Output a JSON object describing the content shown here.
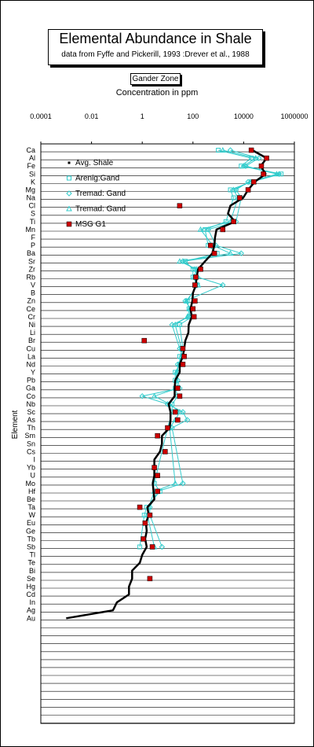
{
  "chart_data": {
    "type": "scatter",
    "title": "Elemental  Abundance in Shale",
    "subtitle": "data from Fyffe and Pickerill, 1993 :Drever et al., 1988",
    "annotation": "Gander Zone",
    "xlabel": "Concentration in ppm",
    "ylabel": "Element",
    "xscale": "log",
    "xlim": [
      0.0001,
      1000000
    ],
    "x_ticks": [
      "0.0001",
      "0.01",
      "1",
      "100",
      "10000",
      "1000000"
    ],
    "grid": "horizontal",
    "legend_position": "upper-left",
    "categories": [
      "Ca",
      "Al",
      "Fe",
      "Si",
      "K",
      "Mg",
      "Na",
      "Cl",
      "S",
      "Ti",
      "Mn",
      "F",
      "P",
      "Ba",
      "Sr",
      "Zr",
      "Rb",
      "V",
      "B",
      "Zn",
      "Ce",
      "Cr",
      "Ni",
      "Li",
      "Br",
      "Cu",
      "La",
      "Nd",
      "Y",
      "Pb",
      "Ga",
      "Co",
      "Nb",
      "Sc",
      "As",
      "Th",
      "Sm",
      "Sn",
      "Cs",
      "I",
      "Yb",
      "U",
      "Mo",
      "Hf",
      "Be",
      "Ta",
      "W",
      "Eu",
      "Ge",
      "Tb",
      "Sb",
      "Tl",
      "Te",
      "Bi",
      "Se",
      "Hg",
      "Cd",
      "In",
      "Ag",
      "Au"
    ],
    "series": [
      {
        "name": "Avg. Shale",
        "style": "line",
        "color": "#000000",
        "points": [
          [
            "Ca",
            22000
          ],
          [
            "Al",
            80000
          ],
          [
            "Fe",
            47000
          ],
          [
            "Si",
            73000
          ],
          [
            "K",
            27000
          ],
          [
            "Mg",
            15000
          ],
          [
            "Na",
            9600
          ],
          [
            "Cl",
            3000
          ],
          [
            "S",
            2400
          ],
          [
            "Ti",
            4600
          ],
          [
            "Mn",
            850
          ],
          [
            "F",
            740
          ],
          [
            "P",
            700
          ],
          [
            "Ba",
            580
          ],
          [
            "Sr",
            300
          ],
          [
            "Zr",
            160
          ],
          [
            "Rb",
            140
          ],
          [
            "V",
            130
          ],
          [
            "B",
            100
          ],
          [
            "Zn",
            95
          ],
          [
            "Ce",
            80
          ],
          [
            "Cr",
            90
          ],
          [
            "Ni",
            68
          ],
          [
            "Li",
            66
          ],
          [
            "Br",
            50
          ],
          [
            "Cu",
            45
          ],
          [
            "La",
            40
          ],
          [
            "Nd",
            30
          ],
          [
            "Y",
            30
          ],
          [
            "Pb",
            20
          ],
          [
            "Ga",
            19
          ],
          [
            "Co",
            19
          ],
          [
            "Nb",
            11
          ],
          [
            "Sc",
            13
          ],
          [
            "As",
            13
          ],
          [
            "Th",
            12
          ],
          [
            "Sm",
            6
          ],
          [
            "Sn",
            6
          ],
          [
            "Cs",
            5
          ],
          [
            "I",
            3
          ],
          [
            "Yb",
            3
          ],
          [
            "U",
            3
          ],
          [
            "Mo",
            2.6
          ],
          [
            "Hf",
            2.8
          ],
          [
            "Be",
            3
          ],
          [
            "Ta",
            1.6
          ],
          [
            "W",
            1.8
          ],
          [
            "Eu",
            1.4
          ],
          [
            "Ge",
            1.5
          ],
          [
            "Tb",
            1.3
          ],
          [
            "Sb",
            1.5
          ],
          [
            "Tl",
            1
          ],
          [
            "Te",
            0.8
          ],
          [
            "Bi",
            0.4
          ],
          [
            "Se",
            0.4
          ],
          [
            "Hg",
            0.3
          ],
          [
            "Cd",
            0.3
          ],
          [
            "In",
            0.1
          ],
          [
            "Ag",
            0.07
          ],
          [
            "Au",
            0.001
          ]
        ]
      },
      {
        "name": "Arenig:Gand",
        "style": "line-square-open",
        "color": "#33CCCC",
        "points": [
          [
            "Ca",
            1000
          ],
          [
            "Al",
            20000
          ],
          [
            "Fe",
            8000
          ],
          [
            "Si",
            300000
          ],
          [
            "K",
            20000
          ],
          [
            "Mg",
            3000
          ],
          [
            "Na",
            4000
          ],
          [
            "Ti",
            2000
          ],
          [
            "Mn",
            300
          ],
          [
            "P",
            400
          ],
          [
            "Ba",
            900
          ],
          [
            "Sr",
            50
          ],
          [
            "Zr",
            100
          ],
          [
            "Rb",
            100
          ],
          [
            "V",
            150
          ],
          [
            "Zn",
            60
          ],
          [
            "Ce",
            70
          ],
          [
            "Cr",
            90
          ],
          [
            "Ni",
            30
          ],
          [
            "Cu",
            40
          ],
          [
            "La",
            30
          ],
          [
            "Nd",
            30
          ],
          [
            "Y",
            20
          ],
          [
            "Pb",
            20
          ],
          [
            "Ga",
            20
          ],
          [
            "Co",
            25
          ],
          [
            "Nb",
            15
          ],
          [
            "Sc",
            15
          ],
          [
            "Th",
            10
          ],
          [
            "Mo",
            3
          ],
          [
            "Hf",
            5
          ],
          [
            "Ta",
            1.5
          ],
          [
            "W",
            1.2
          ],
          [
            "Sb",
            0.8
          ]
        ]
      },
      {
        "name": "Tremad: Gand",
        "style": "line-diamond-open",
        "color": "#33CCCC",
        "points": [
          [
            "Ca",
            3000
          ],
          [
            "Al",
            40000
          ],
          [
            "Fe",
            12000
          ],
          [
            "Si",
            250000
          ],
          [
            "K",
            15000
          ],
          [
            "Mg",
            5000
          ],
          [
            "Na",
            8000
          ],
          [
            "Ti",
            5000
          ],
          [
            "Mn",
            400
          ],
          [
            "P",
            800
          ],
          [
            "Ba",
            8000
          ],
          [
            "Sr",
            40
          ],
          [
            "Zr",
            120
          ],
          [
            "Rb",
            150
          ],
          [
            "V",
            1500
          ],
          [
            "Zn",
            50
          ],
          [
            "Ce",
            80
          ],
          [
            "Cr",
            70
          ],
          [
            "Ni",
            15
          ],
          [
            "Cu",
            30
          ],
          [
            "La",
            40
          ],
          [
            "Nd",
            25
          ],
          [
            "Y",
            25
          ],
          [
            "Pb",
            25
          ],
          [
            "Ga",
            30
          ],
          [
            "Co",
            1
          ],
          [
            "Nb",
            10
          ],
          [
            "Sc",
            40
          ],
          [
            "As",
            60
          ],
          [
            "Th",
            15
          ],
          [
            "Mo",
            40
          ],
          [
            "Hf",
            4
          ],
          [
            "Ta",
            2
          ],
          [
            "W",
            2
          ],
          [
            "Sb",
            6
          ]
        ]
      },
      {
        "name": "Tremad: Gand",
        "style": "line-triangle-open",
        "color": "#33CCCC",
        "points": [
          [
            "Ca",
            1500
          ],
          [
            "Al",
            30000
          ],
          [
            "Fe",
            10000
          ],
          [
            "Si",
            200000
          ],
          [
            "K",
            18000
          ],
          [
            "Mg",
            4000
          ],
          [
            "Na",
            6000
          ],
          [
            "Ti",
            3000
          ],
          [
            "Mn",
            200
          ],
          [
            "P",
            600
          ],
          [
            "Ba",
            3000
          ],
          [
            "Sr",
            30
          ],
          [
            "Zr",
            140
          ],
          [
            "Rb",
            110
          ],
          [
            "V",
            160
          ],
          [
            "Zn",
            55
          ],
          [
            "Ce",
            75
          ],
          [
            "Cr",
            60
          ],
          [
            "Ni",
            20
          ],
          [
            "Cu",
            35
          ],
          [
            "La",
            35
          ],
          [
            "Nd",
            28
          ],
          [
            "Y",
            22
          ],
          [
            "Pb",
            22
          ],
          [
            "Ga",
            25
          ],
          [
            "Co",
            3
          ],
          [
            "Nb",
            12
          ],
          [
            "Sc",
            30
          ],
          [
            "As",
            20
          ],
          [
            "Th",
            12
          ],
          [
            "Mo",
            20
          ],
          [
            "Hf",
            3
          ],
          [
            "Ta",
            1.8
          ],
          [
            "W",
            1.6
          ],
          [
            "Sb",
            3
          ]
        ]
      },
      {
        "name": "MSG G1",
        "style": "marker-square-filled",
        "color": "#CC0000",
        "points": [
          [
            "Ca",
            20000
          ],
          [
            "Al",
            80000
          ],
          [
            "Fe",
            50000
          ],
          [
            "Si",
            60000
          ],
          [
            "K",
            25000
          ],
          [
            "Mg",
            15000
          ],
          [
            "Na",
            7000
          ],
          [
            "Cl",
            30
          ],
          [
            "Ti",
            4000
          ],
          [
            "Mn",
            1500
          ],
          [
            "P",
            500
          ],
          [
            "Ba",
            700
          ],
          [
            "Zr",
            200
          ],
          [
            "Rb",
            130
          ],
          [
            "V",
            120
          ],
          [
            "Zn",
            120
          ],
          [
            "Ce",
            100
          ],
          [
            "Cr",
            110
          ],
          [
            "Br",
            1.2
          ],
          [
            "Cu",
            40
          ],
          [
            "La",
            45
          ],
          [
            "Nd",
            40
          ],
          [
            "Ga",
            25
          ],
          [
            "Co",
            30
          ],
          [
            "Sc",
            20
          ],
          [
            "As",
            25
          ],
          [
            "Th",
            10
          ],
          [
            "Sm",
            4
          ],
          [
            "Cs",
            8
          ],
          [
            "Yb",
            3
          ],
          [
            "U",
            4
          ],
          [
            "Hf",
            4
          ],
          [
            "Ta",
            0.8
          ],
          [
            "W",
            2
          ],
          [
            "Eu",
            1.3
          ],
          [
            "Tb",
            1.1
          ],
          [
            "Sb",
            2.5
          ],
          [
            "Se",
            2
          ]
        ]
      }
    ]
  }
}
